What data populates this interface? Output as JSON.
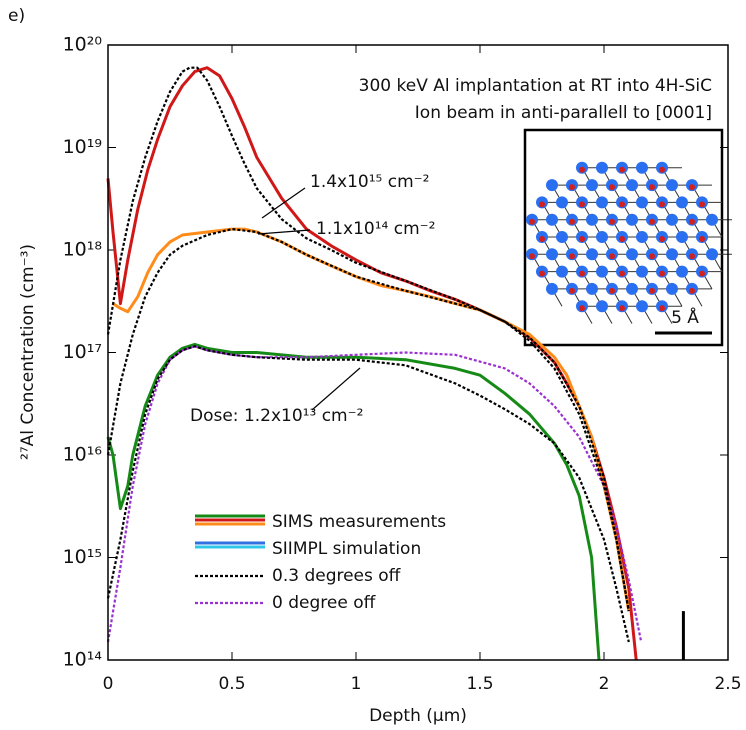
{
  "chart_data": {
    "type": "line",
    "panel_label": "e)",
    "title": [
      "300 keV Al implantation at RT into 4H-SiC",
      "Ion beam in anti-parallell to [0001]"
    ],
    "x_label": "Depth (μm)",
    "y_label": "²⁷Al Concentration (cm⁻³)",
    "xlim": [
      0,
      2.5
    ],
    "xticks": [
      0,
      0.5,
      1,
      1.5,
      2,
      2.5
    ],
    "ylim": [
      100000000000000.0,
      1e+20
    ],
    "ylog": true,
    "yticks": [
      {
        "value": 100000000000000.0,
        "label": "10¹⁴"
      },
      {
        "value": 1000000000000000.0,
        "label": "10¹⁵"
      },
      {
        "value": 1e+16,
        "label": "10¹⁶"
      },
      {
        "value": 1e+17,
        "label": "10¹⁷"
      },
      {
        "value": 1e+18,
        "label": "10¹⁸"
      },
      {
        "value": 1e+19,
        "label": "10¹⁹"
      },
      {
        "value": 1e+20,
        "label": "10²⁰"
      }
    ],
    "series": [
      {
        "color": "#d01818",
        "style": "solid",
        "x": [
          0,
          0.02,
          0.05,
          0.08,
          0.12,
          0.16,
          0.2,
          0.25,
          0.3,
          0.35,
          0.4,
          0.45,
          0.5,
          0.55,
          0.6,
          0.7,
          0.8,
          0.9,
          1.0,
          1.1,
          1.2,
          1.3,
          1.4,
          1.5,
          1.6,
          1.7,
          1.8,
          1.85,
          1.9,
          1.95,
          2.0,
          2.05,
          2.1,
          2.13
        ],
        "values": [
          5e+18,
          1.5e+18,
          3e+17,
          8e+17,
          2.5e+18,
          6e+18,
          1.2e+19,
          2.5e+19,
          4e+19,
          5.5e+19,
          6e+19,
          5e+19,
          3e+19,
          1.6e+19,
          8e+18,
          3.2e+18,
          1.6e+18,
          1.1e+18,
          8e+17,
          6e+17,
          5e+17,
          4e+17,
          3.3e+17,
          2.6e+17,
          2e+17,
          1.4e+17,
          8e+16,
          5e+16,
          3e+16,
          1.5e+16,
          6000000000000000.0,
          2000000000000000.0,
          500000000000000.0,
          100000000000000.0
        ]
      },
      {
        "color": "#ff8c1a",
        "style": "solid",
        "x": [
          0.02,
          0.05,
          0.08,
          0.12,
          0.16,
          0.2,
          0.25,
          0.3,
          0.4,
          0.5,
          0.55,
          0.6,
          0.7,
          0.8,
          0.9,
          1.0,
          1.1,
          1.2,
          1.3,
          1.4,
          1.5,
          1.6,
          1.7,
          1.8,
          1.85,
          1.9,
          1.95,
          2.0,
          2.05,
          2.1
        ],
        "values": [
          3e+17,
          2.7e+17,
          2.5e+17,
          3.5e+17,
          6e+17,
          9e+17,
          1.2e+18,
          1.4e+18,
          1.5e+18,
          1.6e+18,
          1.6e+18,
          1.5e+18,
          1.2e+18,
          9e+17,
          7e+17,
          5.5e+17,
          4.5e+17,
          4e+17,
          3.5e+17,
          3e+17,
          2.6e+17,
          2e+17,
          1.5e+17,
          9e+16,
          6e+16,
          3e+16,
          1.5e+16,
          5000000000000000.0,
          1500000000000000.0,
          300000000000000.0
        ]
      },
      {
        "color": "#168a16",
        "style": "solid",
        "x": [
          0,
          0.02,
          0.05,
          0.08,
          0.1,
          0.15,
          0.2,
          0.25,
          0.3,
          0.35,
          0.4,
          0.5,
          0.6,
          0.8,
          1.0,
          1.2,
          1.4,
          1.5,
          1.6,
          1.7,
          1.8,
          1.85,
          1.9,
          1.95,
          1.98
        ],
        "values": [
          1.5e+16,
          1e+16,
          3000000000000000.0,
          5000000000000000.0,
          1e+16,
          3e+16,
          6e+16,
          9e+16,
          1.1e+17,
          1.2e+17,
          1.1e+17,
          1e+17,
          1e+17,
          9e+16,
          9e+16,
          8.5e+16,
          7e+16,
          6e+16,
          4e+16,
          2.5e+16,
          1.3e+16,
          8000000000000000.0,
          4000000000000000.0,
          1000000000000000.0,
          100000000000000.0
        ]
      },
      {
        "color": "#9b30d0",
        "style": "dotted",
        "x": [
          0,
          0.05,
          0.1,
          0.15,
          0.2,
          0.25,
          0.3,
          0.35,
          0.4,
          0.5,
          0.6,
          0.8,
          1.0,
          1.2,
          1.4,
          1.6,
          1.7,
          1.8,
          1.9,
          2.0,
          2.05,
          2.1,
          2.15
        ],
        "values": [
          150000000000000.0,
          800000000000000.0,
          5000000000000000.0,
          2e+16,
          5e+16,
          8.5e+16,
          1.05e+17,
          1.15e+17,
          1.05e+17,
          9.5e+16,
          9e+16,
          9e+16,
          9.5e+16,
          1e+17,
          9.5e+16,
          7e+16,
          5e+16,
          3e+16,
          1.5e+16,
          5000000000000000.0,
          2000000000000000.0,
          600000000000000.0,
          150000000000000.0
        ]
      },
      {
        "color": "#000000",
        "style": "dotted",
        "x": [
          0,
          0.05,
          0.1,
          0.15,
          0.2,
          0.25,
          0.3,
          0.33,
          0.36,
          0.4,
          0.45,
          0.5,
          0.55,
          0.6,
          0.7,
          0.8,
          0.9,
          1.0,
          1.2,
          1.4,
          1.5,
          1.6,
          1.7,
          1.8,
          1.9,
          2.0,
          2.05,
          2.1
        ],
        "values": [
          1.5e+17,
          8e+17,
          3e+18,
          8e+18,
          1.8e+19,
          3.5e+19,
          5.5e+19,
          6e+19,
          6e+19,
          4.5e+19,
          2.5e+19,
          1.3e+19,
          7e+18,
          4e+18,
          2e+18,
          1.3e+18,
          1e+18,
          7.5e+17,
          5e+17,
          3.3e+17,
          2.6e+17,
          2e+17,
          1.3e+17,
          7e+16,
          2.5e+16,
          5000000000000000.0,
          1500000000000000.0,
          300000000000000.0
        ]
      },
      {
        "color": "#000000",
        "style": "dotted",
        "x": [
          0,
          0.05,
          0.1,
          0.15,
          0.2,
          0.25,
          0.3,
          0.4,
          0.5,
          0.6,
          0.7,
          0.8,
          1.0,
          1.2,
          1.4,
          1.5,
          1.6,
          1.7,
          1.8,
          1.9,
          2.0,
          2.05,
          2.1
        ],
        "values": [
          1e+16,
          5e+16,
          1.5e+17,
          3.5e+17,
          6e+17,
          9e+17,
          1.1e+18,
          1.4e+18,
          1.6e+18,
          1.5e+18,
          1.2e+18,
          9e+17,
          5.5e+17,
          4e+17,
          3e+17,
          2.6e+17,
          2e+17,
          1.4e+17,
          8e+16,
          3e+16,
          6000000000000000.0,
          1500000000000000.0,
          300000000000000.0
        ]
      },
      {
        "color": "#000000",
        "style": "dotted",
        "x": [
          0,
          0.05,
          0.1,
          0.15,
          0.2,
          0.25,
          0.3,
          0.35,
          0.4,
          0.5,
          0.6,
          0.8,
          1.0,
          1.2,
          1.4,
          1.5,
          1.6,
          1.7,
          1.8,
          1.9,
          2.0,
          2.05,
          2.1
        ],
        "values": [
          400000000000000.0,
          1500000000000000.0,
          7000000000000000.0,
          2.5e+16,
          5.5e+16,
          8.5e+16,
          1.05e+17,
          1.15e+17,
          1.05e+17,
          9.5e+16,
          9e+16,
          8.5e+16,
          8.5e+16,
          7.5e+16,
          5e+16,
          3.8e+16,
          2.8e+16,
          2e+16,
          1.3e+16,
          6000000000000000.0,
          1500000000000000.0,
          500000000000000.0,
          150000000000000.0
        ]
      },
      {
        "color": "#000000",
        "style": "solid",
        "x": [
          2.32,
          2.32
        ],
        "values": [
          100000000000000.0,
          300000000000000.0
        ]
      }
    ],
    "legend": [
      {
        "label": "SIMS measurements",
        "colors": [
          "#168a16",
          "#d01818",
          "#ff8c1a"
        ],
        "style": "solid"
      },
      {
        "label": "SIIMPL simulation",
        "colors": [
          "#3070e0",
          "#30c8e8"
        ],
        "style": "solid"
      },
      {
        "label": "0.3 degrees off",
        "colors": [
          "#000000"
        ],
        "style": "dotted"
      },
      {
        "label": "0 degree off",
        "colors": [
          "#9b30d0"
        ],
        "style": "dotted"
      }
    ],
    "annotations": [
      "1.4x10¹⁵ cm⁻²",
      "1.1x10¹⁴ cm⁻²",
      "Dose: 1.2x10¹³ cm⁻²"
    ],
    "inset_scale": "5 Å"
  }
}
